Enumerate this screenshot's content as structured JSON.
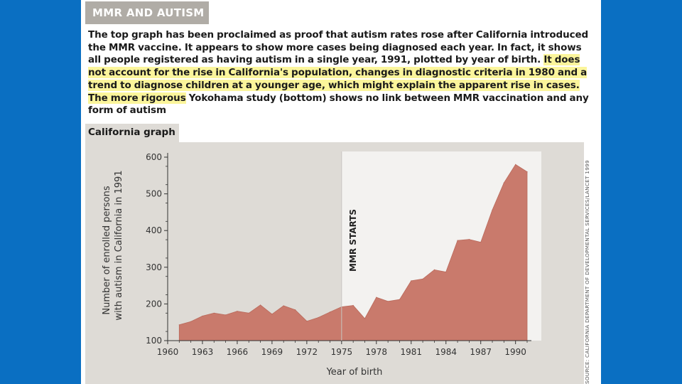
{
  "header": {
    "title": "MMR AND AUTISM"
  },
  "caption": {
    "plain_before": "The top graph has been proclaimed as proof that autism rates rose after California introduced the MMR vaccine. It appears to show more cases being diagnosed each year. In fact, it shows all people registered as having autism in a single year, 1991, plotted by year of birth. ",
    "highlighted": "It does not account for the rise in California's population, changes in diagnostic criteria in 1980 and a trend to diagnose children at a younger age, which might explain the apparent rise in cases. The more rigorous",
    "plain_after": " Yokohama study (bottom) shows no link between MMR vaccination and any form of autism"
  },
  "source": "SOURCE: CALIFORNIA DEPARTMENT OF DEVELOPMENTAL SERVICES/LANCET 1999",
  "colors": {
    "background": "#0a6fc2",
    "panel": "#dedbd6",
    "area_fill": "#c97a6c",
    "highlight": "#fbf59b"
  },
  "chart_data": {
    "type": "area",
    "title": "California graph",
    "xlabel": "Year of birth",
    "ylabel": "Number of enrolled persons with autism in California in 1991",
    "annotation": {
      "text": "MMR STARTS",
      "x": 1975
    },
    "xlim": [
      1960,
      1991
    ],
    "ylim": [
      100,
      600
    ],
    "xticks": [
      1960,
      1963,
      1966,
      1969,
      1972,
      1975,
      1978,
      1981,
      1984,
      1987,
      1990
    ],
    "yticks": [
      100,
      200,
      300,
      400,
      500,
      600
    ],
    "x": [
      1961,
      1962,
      1963,
      1964,
      1965,
      1966,
      1967,
      1968,
      1969,
      1970,
      1971,
      1972,
      1973,
      1974,
      1975,
      1976,
      1977,
      1978,
      1979,
      1980,
      1981,
      1982,
      1983,
      1984,
      1985,
      1986,
      1987,
      1988,
      1989,
      1990,
      1991
    ],
    "y": [
      143,
      152,
      167,
      175,
      170,
      180,
      175,
      197,
      172,
      195,
      184,
      153,
      163,
      178,
      192,
      196,
      160,
      218,
      207,
      212,
      263,
      268,
      293,
      287,
      373,
      376,
      368,
      456,
      530,
      580,
      560
    ]
  }
}
